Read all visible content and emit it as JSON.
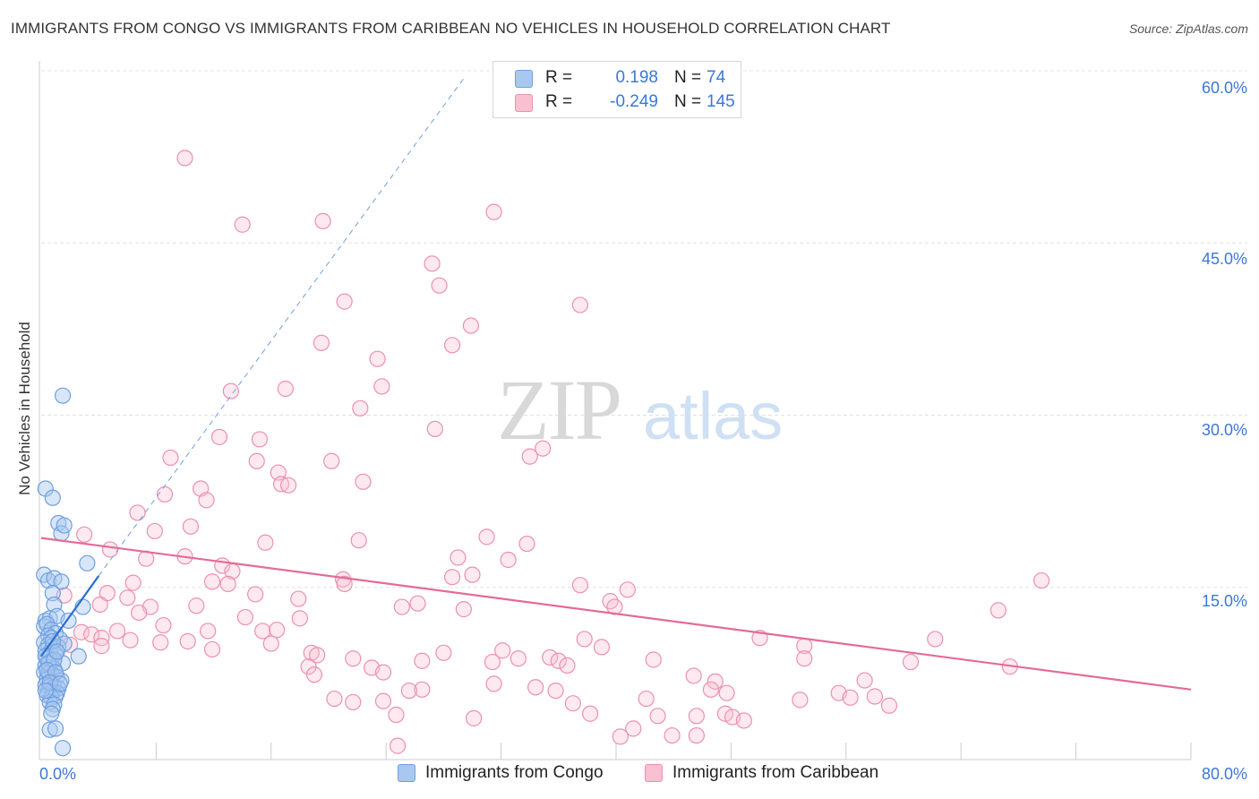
{
  "title": "IMMIGRANTS FROM CONGO VS IMMIGRANTS FROM CARIBBEAN NO VEHICLES IN HOUSEHOLD CORRELATION CHART",
  "source": "Source: ZipAtlas.com",
  "watermark": {
    "zip": "ZIP",
    "atlas": "atlas"
  },
  "legend": [
    {
      "r_label": "R =",
      "r_value": "0.198",
      "n_label": "N =",
      "n_value": "74",
      "fill": "#a8c8f0",
      "stroke": "#6f9fe0"
    },
    {
      "r_label": "R =",
      "r_value": "-0.249",
      "n_label": "N =",
      "n_value": "145",
      "fill": "#f8c0d0",
      "stroke": "#ec90ae"
    }
  ],
  "colors": {
    "congo": "#5a8fdc",
    "congo_line": "#2a6fd0",
    "caribbean": "#e888a8",
    "caribbean_line": "#e46a98",
    "axis_label": "#3a78d8",
    "grid": "#e0e0e0"
  },
  "chart_data": {
    "type": "scatter",
    "title": "IMMIGRANTS FROM CONGO VS IMMIGRANTS FROM CARIBBEAN NO VEHICLES IN HOUSEHOLD CORRELATION CHART",
    "xlabel": "",
    "ylabel": "No Vehicles in Household",
    "xlim": [
      0,
      80
    ],
    "ylim": [
      0,
      60
    ],
    "x_tick_labels": [
      "0.0%",
      "80.0%"
    ],
    "y_ticks": [
      15,
      30,
      45,
      60
    ],
    "y_tick_labels": [
      "15.0%",
      "30.0%",
      "45.0%",
      "60.0%"
    ],
    "legend_position": "bottom",
    "series": [
      {
        "name": "Immigrants from Congo",
        "r": 0.198,
        "n": 74,
        "trend": {
          "x0": 0,
          "y0": 9.0,
          "x1": 4.0,
          "y1": 16.0,
          "x1_extended": 29.5,
          "y1_extended": 59.5
        },
        "points": [
          [
            0.3,
            23.6
          ],
          [
            0.8,
            22.8
          ],
          [
            1.2,
            20.6
          ],
          [
            1.4,
            19.7
          ],
          [
            1.6,
            20.4
          ],
          [
            1.5,
            31.7
          ],
          [
            3.2,
            17.1
          ],
          [
            0.2,
            16.1
          ],
          [
            0.5,
            15.6
          ],
          [
            0.9,
            15.8
          ],
          [
            1.4,
            15.5
          ],
          [
            0.8,
            14.5
          ],
          [
            0.9,
            13.5
          ],
          [
            2.9,
            13.3
          ],
          [
            0.3,
            12.1
          ],
          [
            0.6,
            12.3
          ],
          [
            1.1,
            12.5
          ],
          [
            1.9,
            12.1
          ],
          [
            0.2,
            11.6
          ],
          [
            0.4,
            11.8
          ],
          [
            0.7,
            11.3
          ],
          [
            1.0,
            11.0
          ],
          [
            0.5,
            10.8
          ],
          [
            0.7,
            10.6
          ],
          [
            1.3,
            10.5
          ],
          [
            0.2,
            10.2
          ],
          [
            0.5,
            10.0
          ],
          [
            0.8,
            9.9
          ],
          [
            1.2,
            9.8
          ],
          [
            1.6,
            10.1
          ],
          [
            0.3,
            9.5
          ],
          [
            0.6,
            9.3
          ],
          [
            1.0,
            9.2
          ],
          [
            2.6,
            9.0
          ],
          [
            0.4,
            8.8
          ],
          [
            0.7,
            8.6
          ],
          [
            1.5,
            8.4
          ],
          [
            0.3,
            8.2
          ],
          [
            0.6,
            8.0
          ],
          [
            0.9,
            7.9
          ],
          [
            0.2,
            7.6
          ],
          [
            0.5,
            7.5
          ],
          [
            0.8,
            7.3
          ],
          [
            1.1,
            7.2
          ],
          [
            0.4,
            7.0
          ],
          [
            0.7,
            6.8
          ],
          [
            1.4,
            6.9
          ],
          [
            0.3,
            6.5
          ],
          [
            0.6,
            6.4
          ],
          [
            0.9,
            6.3
          ],
          [
            1.2,
            6.2
          ],
          [
            0.5,
            6.0
          ],
          [
            0.8,
            5.9
          ],
          [
            1.1,
            5.8
          ],
          [
            0.4,
            5.6
          ],
          [
            0.7,
            5.4
          ],
          [
            1.0,
            5.5
          ],
          [
            0.6,
            5.0
          ],
          [
            0.9,
            4.8
          ],
          [
            0.8,
            4.4
          ],
          [
            0.7,
            4.0
          ],
          [
            0.6,
            2.6
          ],
          [
            1.0,
            2.7
          ],
          [
            1.5,
            1.0
          ],
          [
            0.3,
            9.0
          ],
          [
            0.5,
            8.4
          ],
          [
            0.9,
            8.7
          ],
          [
            0.4,
            7.8
          ],
          [
            1.0,
            7.6
          ],
          [
            0.6,
            6.7
          ],
          [
            0.3,
            6.0
          ],
          [
            1.3,
            6.6
          ],
          [
            0.8,
            10.3
          ],
          [
            1.1,
            9.4
          ]
        ]
      },
      {
        "name": "Immigrants from Caribbean",
        "r": -0.249,
        "n": 145,
        "trend": {
          "x0": 0,
          "y0": 19.3,
          "x1": 80,
          "y1": 6.1
        },
        "points": [
          [
            10.0,
            52.4
          ],
          [
            14.0,
            46.6
          ],
          [
            19.6,
            46.9
          ],
          [
            31.5,
            47.7
          ],
          [
            27.2,
            43.2
          ],
          [
            27.7,
            41.3
          ],
          [
            37.5,
            39.6
          ],
          [
            21.1,
            39.9
          ],
          [
            29.9,
            37.8
          ],
          [
            19.5,
            36.3
          ],
          [
            28.6,
            36.1
          ],
          [
            23.4,
            34.9
          ],
          [
            13.2,
            32.1
          ],
          [
            17.0,
            32.3
          ],
          [
            23.7,
            32.5
          ],
          [
            22.2,
            30.6
          ],
          [
            27.4,
            28.8
          ],
          [
            12.4,
            28.1
          ],
          [
            15.2,
            27.9
          ],
          [
            34.9,
            27.1
          ],
          [
            9.0,
            26.3
          ],
          [
            15.0,
            26.0
          ],
          [
            20.2,
            26.0
          ],
          [
            34.0,
            26.4
          ],
          [
            16.5,
            25.0
          ],
          [
            16.7,
            24.0
          ],
          [
            17.2,
            23.9
          ],
          [
            22.4,
            24.2
          ],
          [
            11.1,
            23.6
          ],
          [
            8.6,
            23.1
          ],
          [
            11.5,
            22.6
          ],
          [
            6.7,
            21.5
          ],
          [
            10.4,
            20.3
          ],
          [
            7.9,
            19.9
          ],
          [
            3.0,
            19.6
          ],
          [
            22.1,
            19.1
          ],
          [
            31.0,
            19.4
          ],
          [
            15.6,
            18.9
          ],
          [
            33.8,
            18.8
          ],
          [
            4.8,
            18.3
          ],
          [
            10.0,
            17.7
          ],
          [
            7.3,
            17.5
          ],
          [
            29.0,
            17.6
          ],
          [
            32.5,
            17.4
          ],
          [
            12.6,
            16.9
          ],
          [
            13.3,
            16.4
          ],
          [
            30.0,
            16.1
          ],
          [
            28.6,
            15.9
          ],
          [
            21.0,
            15.7
          ],
          [
            21.1,
            15.3
          ],
          [
            11.9,
            15.5
          ],
          [
            13.0,
            15.3
          ],
          [
            6.4,
            15.4
          ],
          [
            37.5,
            15.2
          ],
          [
            40.8,
            14.8
          ],
          [
            4.6,
            14.5
          ],
          [
            14.9,
            14.4
          ],
          [
            1.6,
            14.3
          ],
          [
            6.0,
            14.1
          ],
          [
            17.9,
            14.0
          ],
          [
            39.6,
            13.8
          ],
          [
            39.9,
            13.3
          ],
          [
            4.1,
            13.5
          ],
          [
            7.6,
            13.3
          ],
          [
            10.8,
            13.4
          ],
          [
            25.1,
            13.3
          ],
          [
            26.2,
            13.6
          ],
          [
            29.4,
            13.1
          ],
          [
            6.8,
            12.8
          ],
          [
            14.2,
            12.4
          ],
          [
            18.0,
            12.3
          ],
          [
            8.5,
            11.7
          ],
          [
            15.4,
            11.2
          ],
          [
            16.4,
            11.3
          ],
          [
            11.6,
            11.2
          ],
          [
            2.8,
            11.1
          ],
          [
            5.3,
            11.2
          ],
          [
            3.5,
            10.9
          ],
          [
            4.2,
            10.6
          ],
          [
            6.2,
            10.4
          ],
          [
            8.3,
            10.2
          ],
          [
            10.2,
            10.3
          ],
          [
            16.0,
            10.1
          ],
          [
            2.0,
            10.0
          ],
          [
            4.2,
            9.9
          ],
          [
            37.8,
            10.5
          ],
          [
            39.0,
            9.8
          ],
          [
            53.1,
            9.9
          ],
          [
            11.9,
            9.6
          ],
          [
            18.8,
            9.3
          ],
          [
            32.1,
            9.5
          ],
          [
            28.0,
            9.3
          ],
          [
            19.2,
            9.1
          ],
          [
            21.7,
            8.8
          ],
          [
            26.5,
            8.6
          ],
          [
            31.4,
            8.5
          ],
          [
            33.2,
            8.8
          ],
          [
            35.4,
            8.9
          ],
          [
            36.0,
            8.6
          ],
          [
            42.6,
            8.7
          ],
          [
            18.6,
            8.1
          ],
          [
            23.0,
            8.0
          ],
          [
            36.6,
            8.2
          ],
          [
            45.4,
            7.3
          ],
          [
            23.8,
            7.6
          ],
          [
            19.0,
            7.4
          ],
          [
            46.9,
            6.8
          ],
          [
            31.5,
            6.6
          ],
          [
            34.4,
            6.3
          ],
          [
            26.5,
            6.1
          ],
          [
            25.6,
            6.0
          ],
          [
            35.8,
            6.0
          ],
          [
            46.6,
            6.1
          ],
          [
            47.7,
            5.8
          ],
          [
            55.5,
            5.8
          ],
          [
            58.0,
            5.5
          ],
          [
            20.4,
            5.3
          ],
          [
            21.7,
            5.0
          ],
          [
            23.8,
            5.1
          ],
          [
            37.0,
            4.9
          ],
          [
            42.1,
            5.3
          ],
          [
            52.8,
            5.2
          ],
          [
            59.0,
            4.7
          ],
          [
            24.7,
            3.9
          ],
          [
            30.1,
            3.6
          ],
          [
            38.2,
            4.0
          ],
          [
            42.9,
            3.8
          ],
          [
            45.6,
            3.8
          ],
          [
            47.6,
            4.0
          ],
          [
            48.1,
            3.7
          ],
          [
            48.9,
            3.4
          ],
          [
            41.2,
            2.7
          ],
          [
            40.3,
            2.0
          ],
          [
            43.9,
            2.1
          ],
          [
            45.6,
            2.1
          ],
          [
            24.8,
            1.2
          ],
          [
            53.1,
            8.8
          ],
          [
            66.6,
            13.0
          ],
          [
            69.6,
            15.6
          ],
          [
            62.2,
            10.5
          ],
          [
            67.4,
            8.1
          ],
          [
            57.3,
            6.9
          ],
          [
            60.5,
            8.5
          ],
          [
            50.0,
            10.6
          ],
          [
            56.3,
            5.4
          ]
        ]
      }
    ]
  },
  "axis": {
    "y_title": "No Vehicles in Household",
    "x_min_label": "0.0%",
    "x_max_label": "80.0%",
    "y_labels": [
      "15.0%",
      "30.0%",
      "45.0%",
      "60.0%"
    ]
  },
  "bottom_legend": [
    {
      "label": "Immigrants from Congo",
      "fill": "#a8c8f0",
      "stroke": "#6f9fe0"
    },
    {
      "label": "Immigrants from Caribbean",
      "fill": "#f8c0d0",
      "stroke": "#ec90ae"
    }
  ]
}
